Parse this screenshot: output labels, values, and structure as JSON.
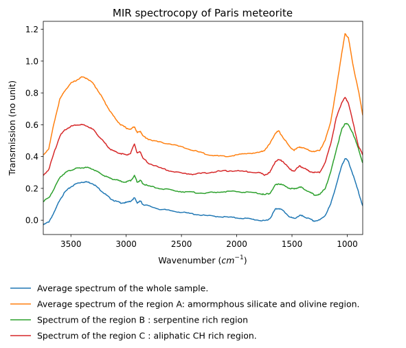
{
  "chart_data": {
    "type": "line",
    "title": "MIR spectrocopy of Paris meteorite",
    "xlabel": "Wavenumber",
    "xlabel_unit": "cm",
    "xlabel_unit_exp": "−1",
    "ylabel": "Transmission (no unit)",
    "xlim": [
      3750,
      860
    ],
    "ylim": [
      -0.09,
      1.25
    ],
    "x_inverted": true,
    "grid": false,
    "legend_position": "below",
    "xticks": [
      3500,
      3000,
      2500,
      2000,
      1500,
      1000
    ],
    "yticks": [
      0.0,
      0.2,
      0.4,
      0.6,
      0.8,
      1.0,
      1.2
    ],
    "xtick_labels": [
      "3500",
      "3000",
      "2500",
      "2000",
      "1500",
      "1000"
    ],
    "ytick_labels": [
      "0.0",
      "0.2",
      "0.4",
      "0.6",
      "0.8",
      "1.0",
      "1.2"
    ],
    "series": [
      {
        "name": "Average spectrum of the whole sample.",
        "color": "#1f77b4",
        "points": [
          [
            3750,
            -0.03
          ],
          [
            3700,
            -0.01
          ],
          [
            3650,
            0.05
          ],
          [
            3600,
            0.13
          ],
          [
            3550,
            0.18
          ],
          [
            3500,
            0.21
          ],
          [
            3450,
            0.23
          ],
          [
            3400,
            0.24
          ],
          [
            3350,
            0.24
          ],
          [
            3300,
            0.23
          ],
          [
            3250,
            0.2
          ],
          [
            3200,
            0.17
          ],
          [
            3150,
            0.14
          ],
          [
            3100,
            0.12
          ],
          [
            3050,
            0.11
          ],
          [
            3000,
            0.11
          ],
          [
            2960,
            0.12
          ],
          [
            2925,
            0.14
          ],
          [
            2900,
            0.11
          ],
          [
            2870,
            0.12
          ],
          [
            2850,
            0.1
          ],
          [
            2800,
            0.09
          ],
          [
            2700,
            0.07
          ],
          [
            2600,
            0.06
          ],
          [
            2500,
            0.05
          ],
          [
            2400,
            0.04
          ],
          [
            2300,
            0.03
          ],
          [
            2200,
            0.025
          ],
          [
            2100,
            0.02
          ],
          [
            2000,
            0.015
          ],
          [
            1900,
            0.01
          ],
          [
            1800,
            0.0
          ],
          [
            1750,
            -0.005
          ],
          [
            1700,
            0.01
          ],
          [
            1650,
            0.07
          ],
          [
            1620,
            0.075
          ],
          [
            1580,
            0.06
          ],
          [
            1520,
            0.02
          ],
          [
            1480,
            0.01
          ],
          [
            1430,
            0.03
          ],
          [
            1400,
            0.025
          ],
          [
            1350,
            0.01
          ],
          [
            1300,
            -0.005
          ],
          [
            1250,
            0.0
          ],
          [
            1200,
            0.03
          ],
          [
            1150,
            0.1
          ],
          [
            1100,
            0.22
          ],
          [
            1050,
            0.34
          ],
          [
            1020,
            0.39
          ],
          [
            990,
            0.37
          ],
          [
            950,
            0.29
          ],
          [
            900,
            0.18
          ],
          [
            860,
            0.09
          ]
        ]
      },
      {
        "name": "Average spectrum of the region A: amormphous silicate and olivine region.",
        "color": "#ff7f0e",
        "points": [
          [
            3750,
            0.41
          ],
          [
            3700,
            0.45
          ],
          [
            3650,
            0.62
          ],
          [
            3600,
            0.76
          ],
          [
            3550,
            0.82
          ],
          [
            3500,
            0.86
          ],
          [
            3450,
            0.88
          ],
          [
            3400,
            0.9
          ],
          [
            3350,
            0.89
          ],
          [
            3300,
            0.86
          ],
          [
            3250,
            0.81
          ],
          [
            3200,
            0.75
          ],
          [
            3150,
            0.69
          ],
          [
            3100,
            0.64
          ],
          [
            3050,
            0.6
          ],
          [
            3000,
            0.58
          ],
          [
            2960,
            0.57
          ],
          [
            2925,
            0.59
          ],
          [
            2900,
            0.55
          ],
          [
            2870,
            0.56
          ],
          [
            2850,
            0.53
          ],
          [
            2800,
            0.51
          ],
          [
            2700,
            0.49
          ],
          [
            2600,
            0.48
          ],
          [
            2500,
            0.46
          ],
          [
            2400,
            0.44
          ],
          [
            2300,
            0.42
          ],
          [
            2200,
            0.405
          ],
          [
            2100,
            0.4
          ],
          [
            2000,
            0.41
          ],
          [
            1900,
            0.42
          ],
          [
            1800,
            0.425
          ],
          [
            1750,
            0.44
          ],
          [
            1700,
            0.48
          ],
          [
            1650,
            0.55
          ],
          [
            1620,
            0.56
          ],
          [
            1580,
            0.52
          ],
          [
            1520,
            0.46
          ],
          [
            1480,
            0.44
          ],
          [
            1430,
            0.46
          ],
          [
            1400,
            0.455
          ],
          [
            1350,
            0.44
          ],
          [
            1300,
            0.43
          ],
          [
            1250,
            0.44
          ],
          [
            1200,
            0.5
          ],
          [
            1150,
            0.62
          ],
          [
            1100,
            0.82
          ],
          [
            1050,
            1.05
          ],
          [
            1020,
            1.17
          ],
          [
            990,
            1.15
          ],
          [
            950,
            0.98
          ],
          [
            900,
            0.82
          ],
          [
            860,
            0.66
          ]
        ]
      },
      {
        "name": "Spectrum of the region B : serpentine rich region",
        "color": "#2ca02c",
        "points": [
          [
            3750,
            0.12
          ],
          [
            3700,
            0.14
          ],
          [
            3650,
            0.2
          ],
          [
            3600,
            0.27
          ],
          [
            3550,
            0.3
          ],
          [
            3500,
            0.315
          ],
          [
            3450,
            0.325
          ],
          [
            3400,
            0.33
          ],
          [
            3350,
            0.33
          ],
          [
            3300,
            0.32
          ],
          [
            3250,
            0.3
          ],
          [
            3200,
            0.28
          ],
          [
            3150,
            0.265
          ],
          [
            3100,
            0.255
          ],
          [
            3050,
            0.245
          ],
          [
            3000,
            0.24
          ],
          [
            2960,
            0.25
          ],
          [
            2925,
            0.28
          ],
          [
            2900,
            0.24
          ],
          [
            2870,
            0.25
          ],
          [
            2850,
            0.23
          ],
          [
            2800,
            0.215
          ],
          [
            2700,
            0.2
          ],
          [
            2600,
            0.19
          ],
          [
            2500,
            0.18
          ],
          [
            2400,
            0.175
          ],
          [
            2300,
            0.17
          ],
          [
            2200,
            0.175
          ],
          [
            2100,
            0.18
          ],
          [
            2000,
            0.18
          ],
          [
            1900,
            0.175
          ],
          [
            1800,
            0.17
          ],
          [
            1750,
            0.16
          ],
          [
            1700,
            0.17
          ],
          [
            1650,
            0.22
          ],
          [
            1620,
            0.23
          ],
          [
            1580,
            0.22
          ],
          [
            1520,
            0.2
          ],
          [
            1480,
            0.195
          ],
          [
            1430,
            0.21
          ],
          [
            1400,
            0.2
          ],
          [
            1350,
            0.18
          ],
          [
            1300,
            0.16
          ],
          [
            1250,
            0.16
          ],
          [
            1200,
            0.2
          ],
          [
            1150,
            0.3
          ],
          [
            1100,
            0.44
          ],
          [
            1050,
            0.57
          ],
          [
            1020,
            0.61
          ],
          [
            990,
            0.6
          ],
          [
            950,
            0.55
          ],
          [
            900,
            0.45
          ],
          [
            860,
            0.36
          ]
        ]
      },
      {
        "name": "Spectrum of the region C : aliphatic CH rich region.",
        "color": "#d62728",
        "points": [
          [
            3750,
            0.28
          ],
          [
            3700,
            0.32
          ],
          [
            3650,
            0.43
          ],
          [
            3600,
            0.53
          ],
          [
            3550,
            0.57
          ],
          [
            3500,
            0.59
          ],
          [
            3450,
            0.6
          ],
          [
            3400,
            0.6
          ],
          [
            3350,
            0.59
          ],
          [
            3300,
            0.57
          ],
          [
            3250,
            0.53
          ],
          [
            3200,
            0.49
          ],
          [
            3150,
            0.45
          ],
          [
            3100,
            0.43
          ],
          [
            3050,
            0.42
          ],
          [
            3000,
            0.41
          ],
          [
            2960,
            0.42
          ],
          [
            2925,
            0.48
          ],
          [
            2900,
            0.42
          ],
          [
            2870,
            0.43
          ],
          [
            2850,
            0.39
          ],
          [
            2800,
            0.36
          ],
          [
            2700,
            0.33
          ],
          [
            2600,
            0.31
          ],
          [
            2500,
            0.295
          ],
          [
            2400,
            0.29
          ],
          [
            2300,
            0.295
          ],
          [
            2200,
            0.305
          ],
          [
            2100,
            0.31
          ],
          [
            2000,
            0.31
          ],
          [
            1900,
            0.305
          ],
          [
            1800,
            0.3
          ],
          [
            1750,
            0.285
          ],
          [
            1700,
            0.3
          ],
          [
            1650,
            0.37
          ],
          [
            1620,
            0.38
          ],
          [
            1580,
            0.37
          ],
          [
            1520,
            0.32
          ],
          [
            1480,
            0.31
          ],
          [
            1430,
            0.34
          ],
          [
            1400,
            0.33
          ],
          [
            1350,
            0.31
          ],
          [
            1300,
            0.3
          ],
          [
            1250,
            0.3
          ],
          [
            1200,
            0.36
          ],
          [
            1150,
            0.48
          ],
          [
            1100,
            0.64
          ],
          [
            1050,
            0.74
          ],
          [
            1020,
            0.77
          ],
          [
            990,
            0.74
          ],
          [
            950,
            0.62
          ],
          [
            900,
            0.47
          ],
          [
            860,
            0.41
          ]
        ]
      }
    ]
  }
}
